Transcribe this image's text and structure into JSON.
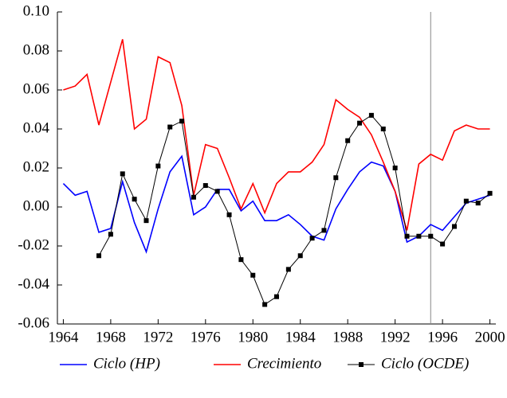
{
  "chart_data": {
    "type": "line",
    "x": [
      1964,
      1965,
      1966,
      1967,
      1968,
      1969,
      1970,
      1971,
      1972,
      1973,
      1974,
      1975,
      1976,
      1977,
      1978,
      1979,
      1980,
      1981,
      1982,
      1983,
      1984,
      1985,
      1986,
      1987,
      1988,
      1989,
      1990,
      1991,
      1992,
      1993,
      1994,
      1995,
      1996,
      1997,
      1998,
      1999,
      2000
    ],
    "series": [
      {
        "name": "Ciclo (HP)",
        "color": "#0000ff",
        "marker": false,
        "values": [
          0.012,
          0.006,
          0.008,
          -0.013,
          -0.011,
          0.013,
          -0.008,
          -0.023,
          -0.001,
          0.018,
          0.026,
          -0.004,
          0.0,
          0.009,
          0.009,
          -0.002,
          0.003,
          -0.007,
          -0.007,
          -0.004,
          -0.009,
          -0.015,
          -0.017,
          -0.001,
          0.009,
          0.018,
          0.023,
          0.021,
          0.008,
          -0.018,
          -0.015,
          -0.009,
          -0.012,
          -0.005,
          0.002,
          0.004,
          0.006
        ]
      },
      {
        "name": "Crecimiento",
        "color": "#ff0000",
        "marker": false,
        "values": [
          0.06,
          0.062,
          0.068,
          0.042,
          0.064,
          0.086,
          0.04,
          0.045,
          0.077,
          0.074,
          0.052,
          0.006,
          0.032,
          0.03,
          0.015,
          -0.001,
          0.012,
          -0.003,
          0.012,
          0.018,
          0.018,
          0.023,
          0.032,
          0.055,
          0.05,
          0.046,
          0.037,
          0.023,
          0.008,
          -0.012,
          0.022,
          0.027,
          0.024,
          0.039,
          0.042,
          0.04,
          0.04
        ]
      },
      {
        "name": "Ciclo (OCDE)",
        "color": "#000000",
        "marker": true,
        "values": [
          null,
          null,
          null,
          -0.025,
          -0.014,
          0.017,
          0.004,
          -0.007,
          0.021,
          0.041,
          0.044,
          0.005,
          0.011,
          0.008,
          -0.004,
          -0.027,
          -0.035,
          -0.05,
          -0.046,
          -0.032,
          -0.025,
          -0.016,
          -0.012,
          0.015,
          0.034,
          0.043,
          0.047,
          0.04,
          0.02,
          -0.015,
          -0.015,
          -0.015,
          -0.019,
          -0.01,
          0.003,
          0.002,
          0.007
        ]
      }
    ],
    "xlim": [
      1963.5,
      2000.5
    ],
    "ylim": [
      -0.06,
      0.1
    ],
    "xticks": [
      1964,
      1968,
      1972,
      1976,
      1980,
      1984,
      1988,
      1992,
      1996,
      2000
    ],
    "yticks": [
      -0.06,
      -0.04,
      -0.02,
      {
        "value": 0,
        "label": "0.00"
      },
      0.02,
      0.04,
      0.06,
      0.08,
      {
        "value": 0.1,
        "label": "0.10"
      }
    ],
    "vline": 1995,
    "legend": "bottom"
  }
}
